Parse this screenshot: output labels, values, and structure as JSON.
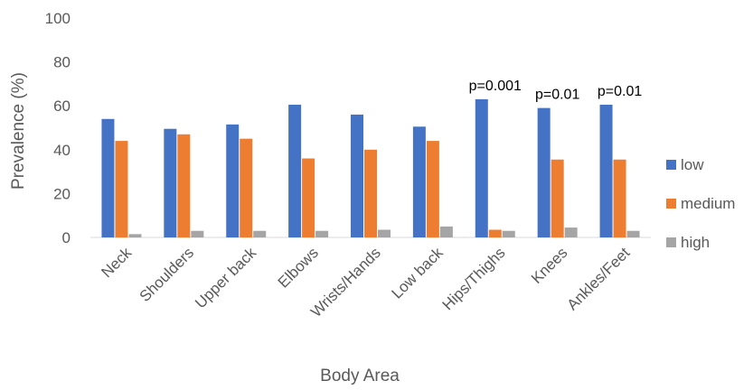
{
  "chart_data": {
    "type": "bar",
    "title": "",
    "xlabel": "Body Area",
    "ylabel": "Prevalence (%)",
    "ylim": [
      0,
      100
    ],
    "yticks": [
      0,
      20,
      40,
      60,
      80,
      100
    ],
    "grid": false,
    "legend_position": "right",
    "categories": [
      "Neck",
      "Shoulders",
      "Upper back",
      "Elbows",
      "Wrists/Hands",
      "Low back",
      "Hips/Thighs",
      "Knees",
      "Ankles/Feet"
    ],
    "series": [
      {
        "name": "low",
        "color": "#4472C4",
        "values": [
          54,
          49.5,
          51.5,
          60.5,
          56,
          50.5,
          63,
          59,
          60.5
        ]
      },
      {
        "name": "medium",
        "color": "#ED7D31",
        "values": [
          44,
          47,
          45,
          36,
          40,
          44,
          3.5,
          35.5,
          35.5
        ]
      },
      {
        "name": "high",
        "color": "#A5A5A5",
        "values": [
          1.5,
          3,
          3,
          3,
          3.5,
          5,
          3,
          4.5,
          3
        ]
      }
    ],
    "annotations": [
      {
        "category": "Hips/Thighs",
        "text": "p=0.001"
      },
      {
        "category": "Knees",
        "text": "p=0.01"
      },
      {
        "category": "Ankles/Feet",
        "text": "p=0.01"
      }
    ]
  }
}
